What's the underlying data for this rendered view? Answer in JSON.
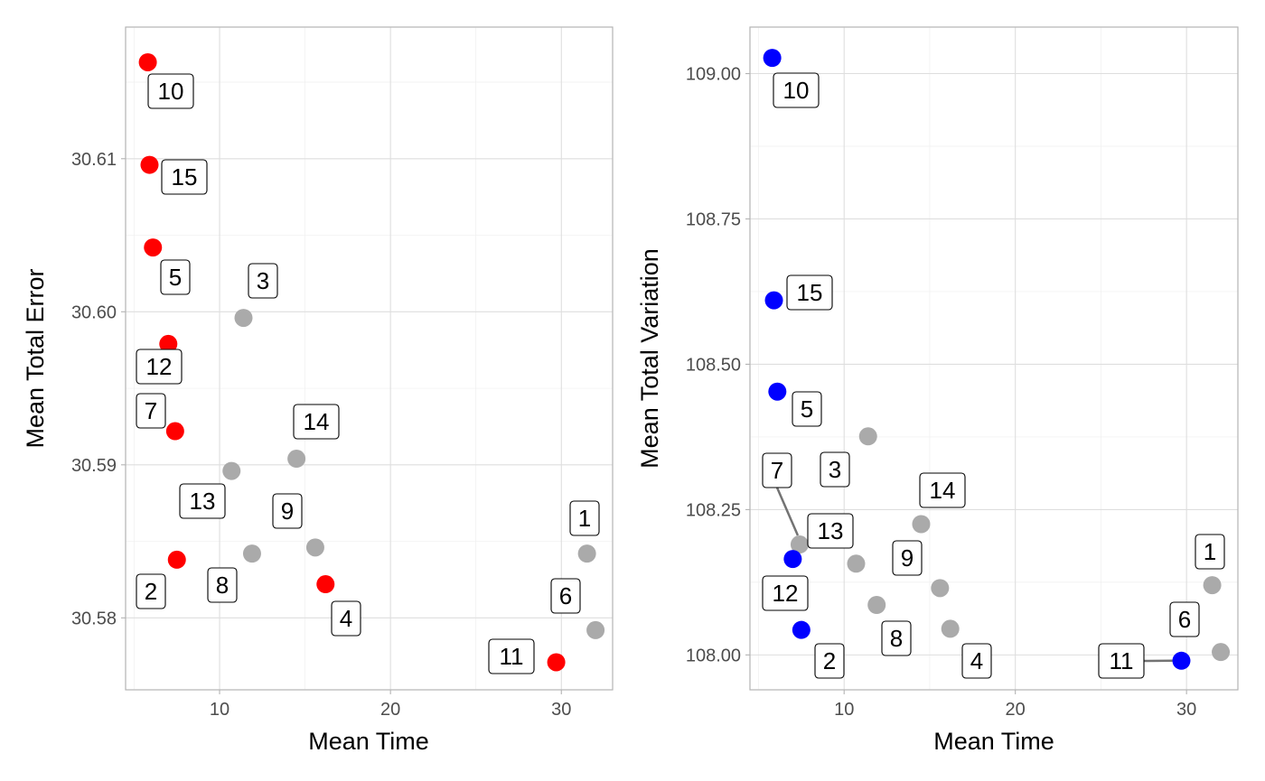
{
  "chart_data": [
    {
      "type": "scatter",
      "xlabel": "Mean Time",
      "ylabel": "Mean Total Error",
      "xlim": [
        4.5,
        33
      ],
      "ylim": [
        30.5753,
        30.6186
      ],
      "x_ticks": [
        10,
        20,
        30
      ],
      "x_tick_labels": [
        "10",
        "20",
        "30"
      ],
      "y_ticks": [
        30.58,
        30.59,
        30.6,
        30.61
      ],
      "y_tick_labels": [
        "30.58",
        "30.59",
        "30.60",
        "30.61"
      ],
      "grid": true,
      "highlight_color": "#ff0000",
      "base_color": "#aaaaaa",
      "points": [
        {
          "label": "1",
          "x": 31.5,
          "y": 30.5842,
          "highlight": false
        },
        {
          "label": "2",
          "x": 7.5,
          "y": 30.5838,
          "highlight": true
        },
        {
          "label": "3",
          "x": 11.4,
          "y": 30.5996,
          "highlight": false
        },
        {
          "label": "4",
          "x": 16.2,
          "y": 30.5822,
          "highlight": true
        },
        {
          "label": "5",
          "x": 6.1,
          "y": 30.6042,
          "highlight": true
        },
        {
          "label": "6",
          "x": 32.0,
          "y": 30.5792,
          "highlight": false
        },
        {
          "label": "7",
          "x": 7.4,
          "y": 30.5922,
          "highlight": true
        },
        {
          "label": "8",
          "x": 11.9,
          "y": 30.5842,
          "highlight": false
        },
        {
          "label": "9",
          "x": 15.6,
          "y": 30.5846,
          "highlight": false
        },
        {
          "label": "10",
          "x": 5.8,
          "y": 30.6163,
          "highlight": true
        },
        {
          "label": "11",
          "x": 29.7,
          "y": 30.5771,
          "highlight": true
        },
        {
          "label": "12",
          "x": 7.0,
          "y": 30.5979,
          "highlight": true
        },
        {
          "label": "13",
          "x": 10.7,
          "y": 30.5896,
          "highlight": false
        },
        {
          "label": "14",
          "x": 14.5,
          "y": 30.5904,
          "highlight": false
        },
        {
          "label": "15",
          "x": 5.9,
          "y": 30.6096,
          "highlight": true
        }
      ]
    },
    {
      "type": "scatter",
      "xlabel": "Mean Time",
      "ylabel": "Mean Total Variation",
      "xlim": [
        4.5,
        33
      ],
      "ylim": [
        107.94,
        109.08
      ],
      "x_ticks": [
        10,
        20,
        30
      ],
      "x_tick_labels": [
        "10",
        "20",
        "30"
      ],
      "y_ticks": [
        108.0,
        108.25,
        108.5,
        108.75,
        109.0
      ],
      "y_tick_labels": [
        "108.00",
        "108.25",
        "108.50",
        "108.75",
        "109.00"
      ],
      "grid": true,
      "highlight_color": "#0000ff",
      "base_color": "#aaaaaa",
      "points": [
        {
          "label": "1",
          "x": 31.5,
          "y": 108.12,
          "highlight": false
        },
        {
          "label": "2",
          "x": 7.5,
          "y": 108.043,
          "highlight": true
        },
        {
          "label": "3",
          "x": 11.4,
          "y": 108.376,
          "highlight": false
        },
        {
          "label": "4",
          "x": 16.2,
          "y": 108.045,
          "highlight": false
        },
        {
          "label": "5",
          "x": 6.1,
          "y": 108.453,
          "highlight": true
        },
        {
          "label": "6",
          "x": 32.0,
          "y": 108.005,
          "highlight": false
        },
        {
          "label": "7",
          "x": 7.4,
          "y": 108.19,
          "highlight": false
        },
        {
          "label": "8",
          "x": 11.9,
          "y": 108.086,
          "highlight": false
        },
        {
          "label": "9",
          "x": 15.6,
          "y": 108.115,
          "highlight": false
        },
        {
          "label": "10",
          "x": 5.8,
          "y": 109.027,
          "highlight": true
        },
        {
          "label": "11",
          "x": 29.7,
          "y": 107.99,
          "highlight": true
        },
        {
          "label": "12",
          "x": 7.0,
          "y": 108.165,
          "highlight": true
        },
        {
          "label": "13",
          "x": 10.7,
          "y": 108.157,
          "highlight": false
        },
        {
          "label": "14",
          "x": 14.5,
          "y": 108.225,
          "highlight": false
        },
        {
          "label": "15",
          "x": 5.9,
          "y": 108.61,
          "highlight": true
        }
      ]
    }
  ]
}
